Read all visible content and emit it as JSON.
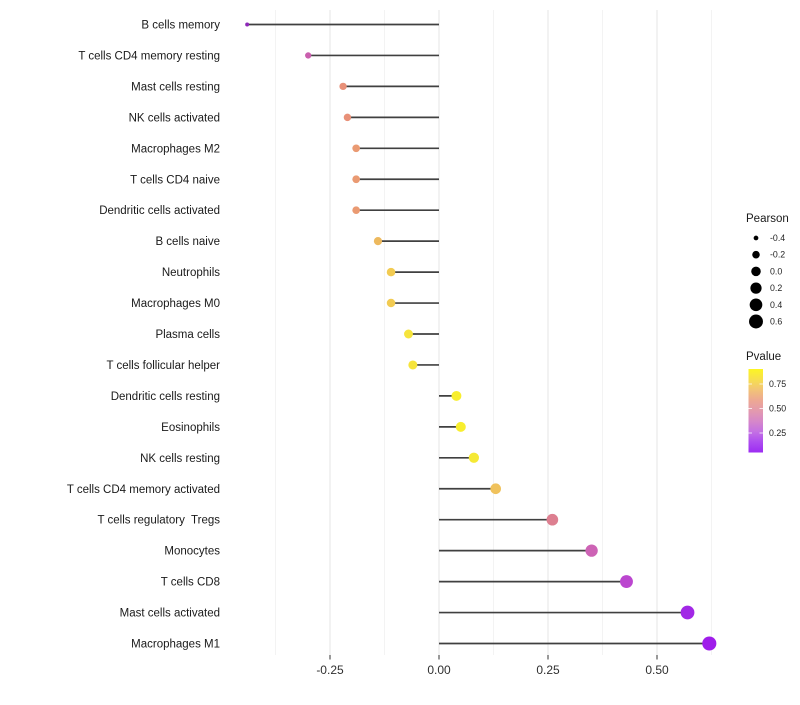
{
  "chart_data": {
    "type": "lollipop",
    "title": "",
    "xlabel": "",
    "ylabel": "",
    "xlim": [
      -0.49,
      0.67
    ],
    "grid": "vertical only, light gray, major + minor",
    "legend_position": "right",
    "x_axis": {
      "tick_values": [
        -0.25,
        0.0,
        0.25,
        0.5
      ],
      "tick_labels": [
        "-0.25",
        "0.00",
        "0.25",
        "0.50"
      ],
      "minor_grid_values": [
        -0.375,
        -0.125,
        0.125,
        0.375,
        0.625
      ]
    },
    "rows": [
      {
        "label": "B cells memory",
        "pearson": -0.44,
        "pvalue": 0.06,
        "color": "#8d28b8"
      },
      {
        "label": "T cells CD4 memory resting",
        "pearson": -0.3,
        "pvalue": 0.33,
        "color": "#ca5fae"
      },
      {
        "label": "Mast cells resting",
        "pearson": -0.22,
        "pvalue": 0.52,
        "color": "#e89078"
      },
      {
        "label": "NK cells activated",
        "pearson": -0.21,
        "pvalue": 0.52,
        "color": "#e89078"
      },
      {
        "label": "Macrophages M2",
        "pearson": -0.19,
        "pvalue": 0.57,
        "color": "#ea9a72"
      },
      {
        "label": "T cells CD4 naive",
        "pearson": -0.19,
        "pvalue": 0.57,
        "color": "#ea9a72"
      },
      {
        "label": "Dendritic cells activated",
        "pearson": -0.19,
        "pvalue": 0.57,
        "color": "#ea9a72"
      },
      {
        "label": "B cells naive",
        "pearson": -0.14,
        "pvalue": 0.66,
        "color": "#edb95e"
      },
      {
        "label": "Neutrophils",
        "pearson": -0.11,
        "pvalue": 0.72,
        "color": "#f2cb52"
      },
      {
        "label": "Macrophages M0",
        "pearson": -0.11,
        "pvalue": 0.72,
        "color": "#f2cb52"
      },
      {
        "label": "Plasma cells",
        "pearson": -0.07,
        "pvalue": 0.8,
        "color": "#f6e43c"
      },
      {
        "label": "T cells follicular helper",
        "pearson": -0.06,
        "pvalue": 0.8,
        "color": "#f6e43c"
      },
      {
        "label": "Dendritic cells resting",
        "pearson": 0.04,
        "pvalue": 0.88,
        "color": "#f8ee2e"
      },
      {
        "label": "Eosinophils",
        "pearson": 0.05,
        "pvalue": 0.88,
        "color": "#f8ee2e"
      },
      {
        "label": "NK cells resting",
        "pearson": 0.08,
        "pvalue": 0.85,
        "color": "#f5e935"
      },
      {
        "label": "T cells CD4 memory activated",
        "pearson": 0.13,
        "pvalue": 0.7,
        "color": "#f0c25c"
      },
      {
        "label": "T cells regulatory  Tregs",
        "pearson": 0.26,
        "pvalue": 0.46,
        "color": "#dd7f90"
      },
      {
        "label": "Monocytes",
        "pearson": 0.35,
        "pvalue": 0.29,
        "color": "#cd63b5"
      },
      {
        "label": "T cells CD8",
        "pearson": 0.43,
        "pvalue": 0.19,
        "color": "#bb46cf"
      },
      {
        "label": "Mast cells activated",
        "pearson": 0.57,
        "pvalue": 0.07,
        "color": "#a228e6"
      },
      {
        "label": "Macrophages M1",
        "pearson": 0.62,
        "pvalue": 0.04,
        "color": "#9f1dea"
      }
    ],
    "legend": {
      "pearson": {
        "title": "Pearson",
        "entries": [
          {
            "label": "-0.4",
            "value": -0.4
          },
          {
            "label": "-0.2",
            "value": -0.2
          },
          {
            "label": "0.0",
            "value": 0.0
          },
          {
            "label": "0.2",
            "value": 0.2
          },
          {
            "label": "0.4",
            "value": 0.4
          },
          {
            "label": "0.6",
            "value": 0.6
          }
        ],
        "dot_color": "#000000"
      },
      "pvalue": {
        "title": "Pvalue",
        "tick_labels": [
          "0.75",
          "0.50",
          "0.25"
        ],
        "tick_values": [
          0.75,
          0.5,
          0.25
        ],
        "range": [
          0.04,
          0.9
        ],
        "gradient_top_to_bottom": [
          "#fcf523",
          "#f7df4e",
          "#f2c377",
          "#eda893",
          "#e39aae",
          "#d688c9",
          "#c471e3",
          "#ad4cf0",
          "#9c2cf2"
        ]
      }
    }
  },
  "colors": {
    "background": "#ffffff",
    "stem": "#404040",
    "grid_major": "#e6e6e6",
    "grid_minor": "#f3f3f3",
    "axis_tick": "#333333",
    "gradient_bar_tick": "#ffffff"
  }
}
